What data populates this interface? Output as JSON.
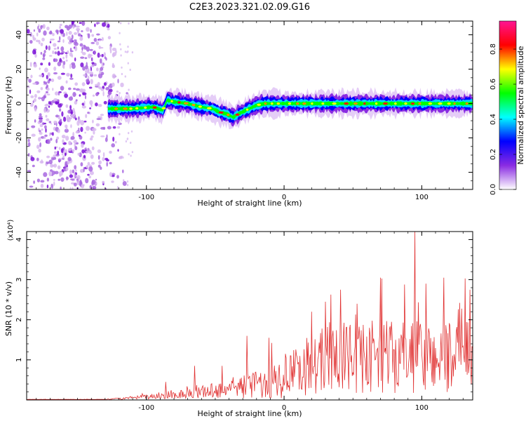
{
  "title": "C2E3.2023.321.02.09.G16",
  "colorbar": {
    "label": "Normalized spectral amplitude",
    "ticks": [
      "0.0",
      "0.2",
      "0.4",
      "0.6",
      "0.8"
    ],
    "tick_values": [
      0.0,
      0.2,
      0.4,
      0.6,
      0.8
    ],
    "range": [
      0,
      0.96
    ],
    "colors": [
      "#ffffff",
      "#8a2be2",
      "#0000ff",
      "#00ffff",
      "#00ff00",
      "#ffff00",
      "#ff0000",
      "#ff1493"
    ]
  },
  "chart_data": [
    {
      "type": "heatmap",
      "xlabel": "Height of straight line (km)",
      "ylabel": "Frequency (Hz)",
      "xlim": [
        -187,
        137
      ],
      "ylim": [
        -50,
        48
      ],
      "xticks": [
        -100,
        0,
        100
      ],
      "xtick_labels": [
        "-100",
        "0",
        "100"
      ],
      "yticks": [
        -40,
        -20,
        0,
        20,
        40
      ],
      "ytick_labels": [
        "-40",
        "-20",
        "0",
        "20",
        "40"
      ],
      "noise_region_x": [
        -187,
        -112
      ],
      "signal_start_x": -128,
      "ridge": {
        "x": [
          -128,
          -110,
          -95,
          -88,
          -85,
          -80,
          -70,
          -60,
          -52,
          -47,
          -42,
          -37,
          -33,
          -28,
          -20,
          -14,
          -8,
          0,
          10,
          30,
          60,
          90,
          137
        ],
        "y": [
          -3,
          -3,
          -2,
          -4,
          2,
          1,
          0,
          -2,
          -3,
          -5,
          -6,
          -8,
          -6,
          -4,
          -1,
          0,
          0,
          0,
          0,
          0,
          0,
          0,
          0
        ]
      }
    },
    {
      "type": "line",
      "xlabel": "Height of straight line (km)",
      "ylabel": "SNR (10 * v/v)",
      "scale_label": "(x10⁴)",
      "xlim": [
        -187,
        137
      ],
      "ylim": [
        0,
        4.2
      ],
      "xticks": [
        -100,
        0,
        100
      ],
      "xtick_labels": [
        "-100",
        "0",
        "100"
      ],
      "yticks": [
        1,
        2,
        3,
        4
      ],
      "ytick_labels": [
        "1",
        "2",
        "3",
        "4"
      ],
      "series": [
        {
          "color": "#e03030",
          "envelope": {
            "x": [
              -187,
              -130,
              -110,
              -90,
              -70,
              -50,
              -30,
              -15,
              0,
              15,
              30,
              60,
              90,
              137
            ],
            "base": [
              0.01,
              0.01,
              0.04,
              0.08,
              0.12,
              0.18,
              0.25,
              0.3,
              0.4,
              0.6,
              0.75,
              0.8,
              0.8,
              0.8
            ],
            "amp": [
              0.005,
              0.01,
              0.06,
              0.12,
              0.2,
              0.3,
              0.45,
              0.6,
              0.8,
              1.1,
              1.3,
              1.4,
              1.4,
              1.4
            ]
          },
          "peaks": [
            {
              "x": -86,
              "y": 0.45
            },
            {
              "x": -65,
              "y": 0.85
            },
            {
              "x": -45,
              "y": 0.85
            },
            {
              "x": -27,
              "y": 1.6
            },
            {
              "x": -11,
              "y": 1.55
            },
            {
              "x": 20,
              "y": 2.2
            },
            {
              "x": 30,
              "y": 2.45
            },
            {
              "x": 41,
              "y": 2.75
            },
            {
              "x": 53,
              "y": 2.4
            },
            {
              "x": 70,
              "y": 3.05
            },
            {
              "x": 95,
              "y": 4.2
            },
            {
              "x": 103,
              "y": 2.9
            },
            {
              "x": 116,
              "y": 3.05
            },
            {
              "x": 135,
              "y": 2.75
            }
          ]
        }
      ]
    }
  ]
}
